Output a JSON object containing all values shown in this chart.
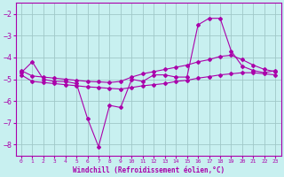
{
  "xlabel": "Windchill (Refroidissement éolien,°C)",
  "background_color": "#c8f0f0",
  "grid_color": "#a0c8c8",
  "line_color": "#aa00aa",
  "xlim": [
    -0.5,
    23.5
  ],
  "ylim": [
    -8.5,
    -1.5
  ],
  "yticks": [
    -8,
    -7,
    -6,
    -5,
    -4,
    -3,
    -2
  ],
  "xticks": [
    0,
    1,
    2,
    3,
    4,
    5,
    6,
    7,
    8,
    9,
    10,
    11,
    12,
    13,
    14,
    15,
    16,
    17,
    18,
    19,
    20,
    21,
    22,
    23
  ],
  "line1_x": [
    0,
    1,
    2,
    3,
    4,
    5,
    6,
    7,
    8,
    9,
    10,
    11,
    12,
    13,
    14,
    15,
    16,
    17,
    18,
    19,
    20,
    21,
    22,
    23
  ],
  "line1_y": [
    -4.7,
    -4.2,
    -5.0,
    -5.1,
    -5.1,
    -5.2,
    -6.8,
    -8.1,
    -6.2,
    -6.3,
    -5.0,
    -5.1,
    -4.8,
    -4.8,
    -4.9,
    -4.9,
    -2.5,
    -2.2,
    -2.2,
    -3.7,
    -4.4,
    -4.6,
    -4.7,
    -4.6
  ],
  "line2_x": [
    0,
    1,
    2,
    3,
    4,
    5,
    6,
    7,
    8,
    9,
    10,
    11,
    12,
    13,
    14,
    15,
    16,
    17,
    18,
    19,
    20,
    21,
    22,
    23
  ],
  "line2_y": [
    -4.6,
    -4.85,
    -4.9,
    -4.95,
    -5.0,
    -5.05,
    -5.1,
    -5.12,
    -5.15,
    -5.1,
    -4.9,
    -4.75,
    -4.65,
    -4.55,
    -4.45,
    -4.35,
    -4.2,
    -4.1,
    -3.95,
    -3.9,
    -4.1,
    -4.35,
    -4.55,
    -4.65
  ],
  "line3_x": [
    0,
    1,
    2,
    3,
    4,
    5,
    6,
    7,
    8,
    9,
    10,
    11,
    12,
    13,
    14,
    15,
    16,
    17,
    18,
    19,
    20,
    21,
    22,
    23
  ],
  "line3_y": [
    -4.8,
    -5.1,
    -5.15,
    -5.2,
    -5.25,
    -5.3,
    -5.35,
    -5.38,
    -5.42,
    -5.45,
    -5.38,
    -5.3,
    -5.25,
    -5.2,
    -5.1,
    -5.05,
    -4.95,
    -4.88,
    -4.8,
    -4.75,
    -4.7,
    -4.7,
    -4.75,
    -4.8
  ]
}
